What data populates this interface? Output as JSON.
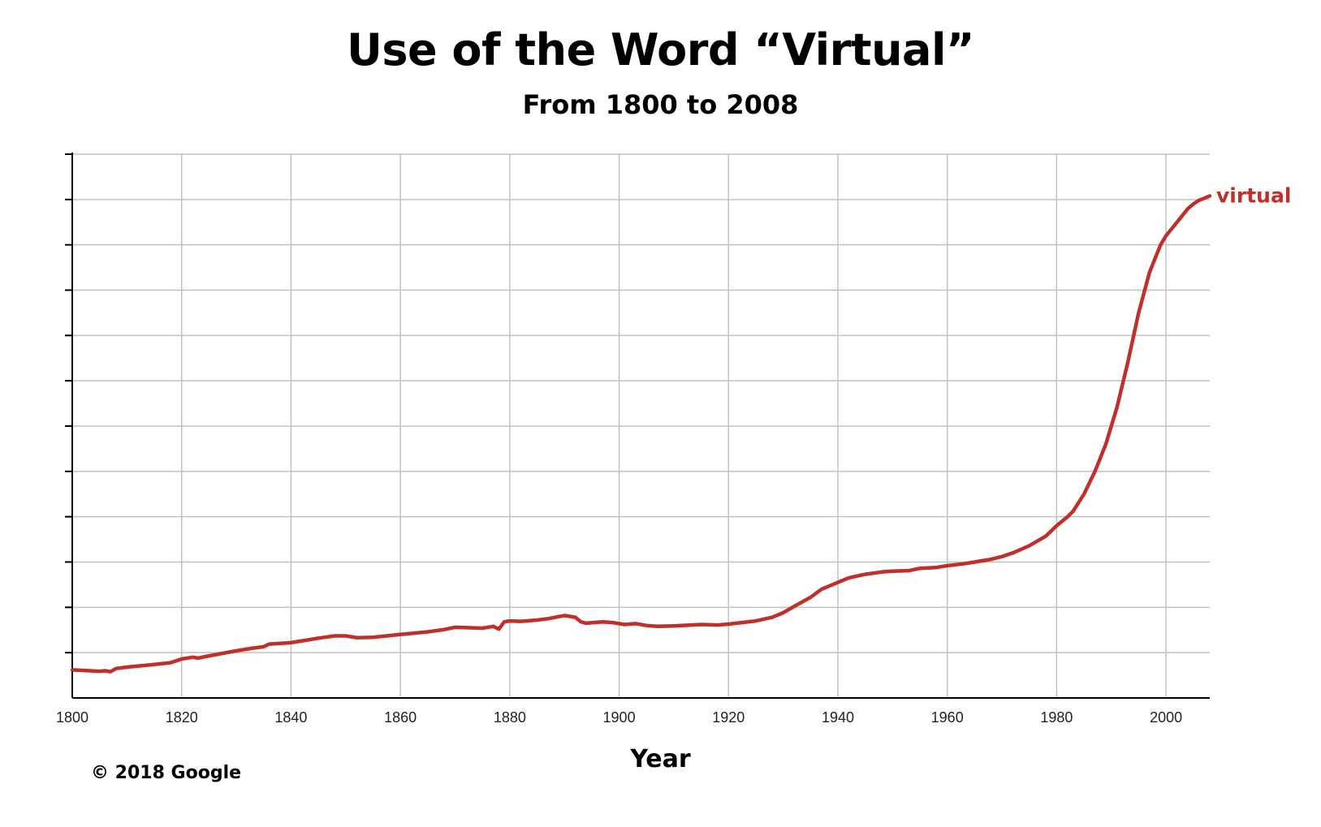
{
  "title": "Use of the Word “Virtual”",
  "subtitle": "From 1800 to 2008",
  "copyright": "© 2018 Google",
  "colors": {
    "series": "#c0302a",
    "grid": "#c0c0c0",
    "axis": "#000000"
  },
  "chart_data": {
    "type": "line",
    "title": "Use of the Word “Virtual”",
    "subtitle": "From 1800 to 2008",
    "xlabel": "Year",
    "ylabel": "",
    "xlim": [
      1800,
      2008
    ],
    "ylim": [
      0,
      12
    ],
    "x_ticks": [
      "1800",
      "1820",
      "1840",
      "1860",
      "1880",
      "1900",
      "1920",
      "1940",
      "1960",
      "1980",
      "2000"
    ],
    "y_tick_count": 12,
    "y_tick_labels_shown": false,
    "grid": true,
    "legend": "inline label at end of line",
    "series": [
      {
        "name": "virtual",
        "x": [
          1800,
          1805,
          1806,
          1807,
          1808,
          1810,
          1815,
          1818,
          1820,
          1822,
          1823,
          1825,
          1830,
          1833,
          1835,
          1836,
          1840,
          1845,
          1848,
          1850,
          1852,
          1855,
          1860,
          1865,
          1868,
          1870,
          1875,
          1877,
          1878,
          1879,
          1880,
          1882,
          1885,
          1887,
          1890,
          1891,
          1892,
          1893,
          1894,
          1895,
          1897,
          1899,
          1901,
          1903,
          1905,
          1907,
          1910,
          1915,
          1918,
          1920,
          1925,
          1928,
          1930,
          1932,
          1935,
          1937,
          1940,
          1942,
          1945,
          1948,
          1950,
          1953,
          1955,
          1958,
          1960,
          1963,
          1965,
          1968,
          1970,
          1972,
          1975,
          1978,
          1980,
          1982,
          1983,
          1985,
          1987,
          1989,
          1991,
          1993,
          1995,
          1997,
          1999,
          2000,
          2002,
          2004,
          2005,
          2006,
          2008
        ],
        "y": [
          0.62,
          0.59,
          0.6,
          0.58,
          0.65,
          0.68,
          0.74,
          0.78,
          0.86,
          0.9,
          0.88,
          0.93,
          1.04,
          1.1,
          1.13,
          1.19,
          1.22,
          1.32,
          1.37,
          1.37,
          1.33,
          1.34,
          1.4,
          1.46,
          1.51,
          1.56,
          1.54,
          1.58,
          1.52,
          1.68,
          1.7,
          1.69,
          1.72,
          1.75,
          1.82,
          1.8,
          1.78,
          1.68,
          1.65,
          1.66,
          1.68,
          1.66,
          1.62,
          1.64,
          1.6,
          1.58,
          1.59,
          1.62,
          1.61,
          1.63,
          1.7,
          1.78,
          1.88,
          2.02,
          2.22,
          2.4,
          2.55,
          2.65,
          2.73,
          2.78,
          2.8,
          2.81,
          2.86,
          2.88,
          2.92,
          2.96,
          3.0,
          3.06,
          3.12,
          3.2,
          3.36,
          3.57,
          3.8,
          4.0,
          4.12,
          4.5,
          5.0,
          5.6,
          6.4,
          7.4,
          8.5,
          9.4,
          10.0,
          10.2,
          10.5,
          10.8,
          10.9,
          10.98,
          11.08
        ]
      }
    ]
  }
}
